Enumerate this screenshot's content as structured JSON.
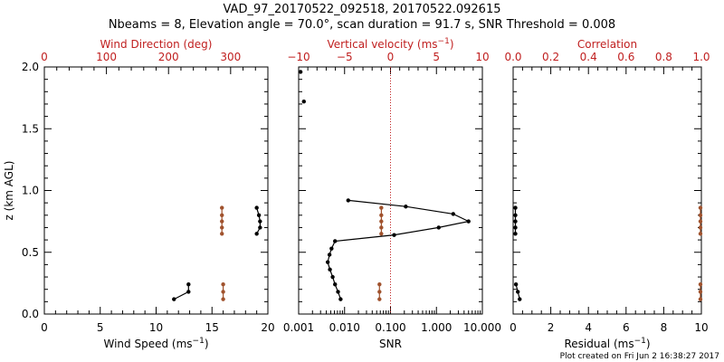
{
  "title": {
    "line1": "VAD_97_20170522_092518, 20170522.092615",
    "line2": "Nbeams = 8, Elevation angle = 70.0°, scan duration = 91.7 s, SNR Threshold = 0.008"
  },
  "footer": "Plot created on Fri Jun  2 16:38:27 2017",
  "colors": {
    "black": "#000000",
    "red": "#c02020",
    "brown": "#a0522d"
  },
  "chart_data": [
    {
      "type": "scatter",
      "title": "Wind Speed / Wind Direction",
      "xlabel": "Wind Speed (ms",
      "xlabel_sup": "−1",
      "xlabel_end": ")",
      "xlim": [
        0,
        20
      ],
      "xticks": [
        0,
        5,
        10,
        15,
        20
      ],
      "x2label": "Wind Direction (deg)",
      "x2lim": [
        0,
        360
      ],
      "x2ticks": [
        0,
        100,
        200,
        300
      ],
      "ylabel": "z (km AGL)",
      "ylim": [
        0,
        2
      ],
      "yticks": [
        "0.0",
        "0.5",
        "1.0",
        "1.5",
        "2.0"
      ],
      "series": [
        {
          "name": "Wind Speed",
          "color": "black",
          "axis": "bottom",
          "x": [
            11.6,
            12.9,
            12.9,
            19.0,
            19.3,
            19.3,
            19.2,
            19.0
          ],
          "y": [
            0.12,
            0.18,
            0.24,
            0.65,
            0.7,
            0.75,
            0.8,
            0.86
          ]
        },
        {
          "name": "Wind Direction",
          "color": "brown",
          "axis": "top",
          "x": [
            288,
            288,
            288,
            286,
            286,
            286,
            286,
            286
          ],
          "y": [
            0.12,
            0.18,
            0.24,
            0.65,
            0.7,
            0.75,
            0.8,
            0.86
          ]
        }
      ]
    },
    {
      "type": "line",
      "title": "SNR / Vertical velocity",
      "xlabel": "SNR",
      "xscale": "log",
      "xlim": [
        0.001,
        10
      ],
      "xticks": [
        "0.001",
        "0.010",
        "0.100",
        "1.000",
        "10.000"
      ],
      "x2label": "Vertical velocity (ms",
      "x2label_sup": "−1",
      "x2label_end": ")",
      "x2lim": [
        -10,
        10
      ],
      "x2ticks": [
        "−10",
        "−5",
        "0",
        "5",
        "10"
      ],
      "zero_line": 0,
      "ylim": [
        0,
        2
      ],
      "series": [
        {
          "name": "SNR",
          "color": "black",
          "axis": "bottom",
          "x": [
            0.0082,
            0.0072,
            0.0062,
            0.0055,
            0.0048,
            0.0043,
            0.0047,
            0.0052,
            0.0062,
            0.12,
            1.12,
            5.0,
            2.32,
            0.215,
            0.012,
            0.0013,
            0.0011
          ],
          "y": [
            0.12,
            0.18,
            0.24,
            0.3,
            0.36,
            0.42,
            0.48,
            0.53,
            0.59,
            0.64,
            0.7,
            0.75,
            0.81,
            0.87,
            0.92,
            1.72,
            1.96
          ]
        },
        {
          "name": "Vertical velocity",
          "color": "brown",
          "axis": "top",
          "x": [
            -1.2,
            -1.2,
            -1.2,
            -1.0,
            -1.0,
            -1.0,
            -1.0,
            -1.0
          ],
          "y": [
            0.12,
            0.18,
            0.24,
            0.65,
            0.7,
            0.75,
            0.8,
            0.86
          ]
        }
      ]
    },
    {
      "type": "scatter",
      "title": "Residual / Correlation",
      "xlabel": "Residual (ms",
      "xlabel_sup": "−1",
      "xlabel_end": ")",
      "xlim": [
        0,
        10
      ],
      "xticks": [
        "0",
        "2",
        "4",
        "6",
        "8",
        "10"
      ],
      "x2label": "Correlation",
      "x2lim": [
        0,
        1
      ],
      "x2ticks": [
        "0.0",
        "0.2",
        "0.4",
        "0.6",
        "0.8",
        "1.0"
      ],
      "ylim": [
        0,
        2
      ],
      "series": [
        {
          "name": "Residual",
          "color": "black",
          "axis": "bottom",
          "x": [
            0.35,
            0.25,
            0.15,
            0.12,
            0.12,
            0.12,
            0.12,
            0.12
          ],
          "y": [
            0.12,
            0.18,
            0.24,
            0.65,
            0.7,
            0.75,
            0.8,
            0.86
          ]
        },
        {
          "name": "Correlation",
          "color": "brown",
          "axis": "top",
          "x": [
            0.995,
            0.995,
            0.995,
            0.995,
            0.995,
            0.995,
            0.995,
            0.995
          ],
          "y": [
            0.12,
            0.18,
            0.24,
            0.65,
            0.7,
            0.75,
            0.8,
            0.86
          ]
        }
      ]
    }
  ]
}
